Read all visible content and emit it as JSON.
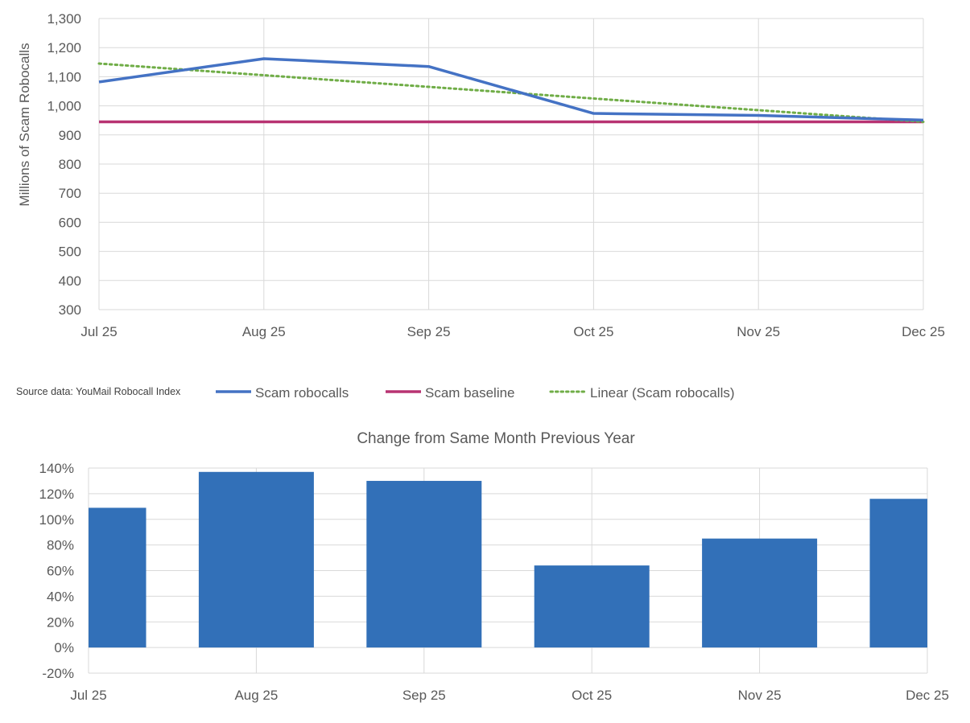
{
  "chart_data": [
    {
      "type": "line",
      "ylabel": "Millions of Scam Robocalls",
      "categories": [
        "Jul 25",
        "Aug 25",
        "Sep 25",
        "Oct 25",
        "Nov 25",
        "Dec 25"
      ],
      "ylim": [
        300,
        1300
      ],
      "yticks": [
        300,
        400,
        500,
        600,
        700,
        800,
        900,
        1000,
        1100,
        1200,
        1300
      ],
      "grid": true,
      "series": [
        {
          "name": "Scam robocalls",
          "values": [
            1082,
            1162,
            1135,
            974,
            967,
            951
          ],
          "color": "#4472C4",
          "style": "solid"
        },
        {
          "name": "Scam baseline",
          "values": [
            945,
            945,
            945,
            945,
            945,
            945
          ],
          "color": "#B83372",
          "style": "solid"
        },
        {
          "name": "Linear (Scam robocalls)",
          "trendline_of": "Scam robocalls",
          "color": "#70AD47",
          "style": "dotted"
        }
      ],
      "legend": {
        "placement": "bottom",
        "note": "Source data: YouMail Robocall Index"
      }
    },
    {
      "type": "bar",
      "title": "Change from Same Month Previous Year",
      "categories": [
        "Jul 25",
        "Aug 25",
        "Sep 25",
        "Oct 25",
        "Nov 25",
        "Dec 25"
      ],
      "values": [
        109,
        137,
        130,
        64,
        85,
        116
      ],
      "unit": "%",
      "ylim": [
        -20,
        140
      ],
      "yticks": [
        -20,
        0,
        20,
        40,
        60,
        80,
        100,
        120,
        140
      ],
      "grid": true,
      "color": "#3270B8"
    }
  ]
}
